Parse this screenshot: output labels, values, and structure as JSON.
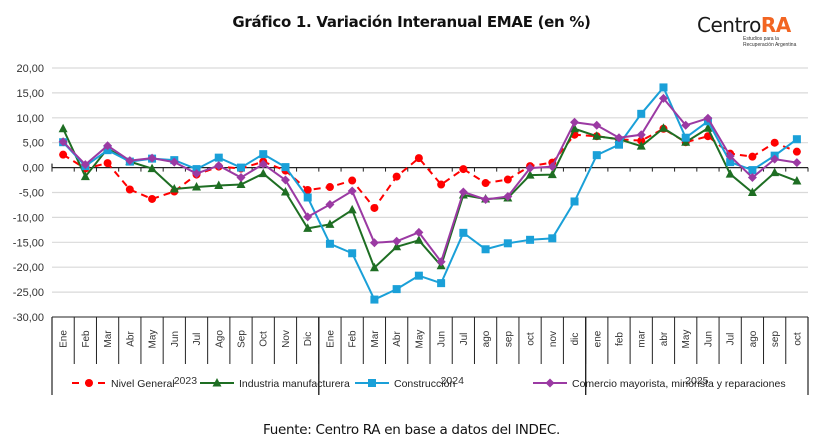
{
  "header": {
    "title": "Gráfico 1. Variación Interanual EMAE (en %)",
    "logo_main": "Centro",
    "logo_accent": "RA",
    "logo_sub_1": "Estudios para la",
    "logo_sub_2": "Recuperación Argentina"
  },
  "footer": {
    "source": "Fuente: Centro RA en base a datos del INDEC."
  },
  "chart_data": {
    "type": "line",
    "title": "Gráfico 1. Variación Interanual EMAE (en %)",
    "xlabel": "",
    "ylabel": "",
    "ylim": [
      -30,
      20
    ],
    "yticks": [
      20,
      15,
      10,
      5,
      0,
      -5,
      -10,
      -15,
      -20,
      -25,
      -30
    ],
    "ytick_labels": [
      "20,00",
      "15,00",
      "10,00",
      "5,00",
      "0,00",
      "-5,00",
      "-10,00",
      "-15,00",
      "-20,00",
      "-25,00",
      "-30,00"
    ],
    "grid": true,
    "legend_position": "bottom",
    "categories": [
      "Ene",
      "Feb",
      "Mar",
      "Abr",
      "May",
      "Jun",
      "Jul",
      "Ago",
      "Sep",
      "Oct",
      "Nov",
      "Dic",
      "Ene",
      "Feb",
      "Mar",
      "Abr",
      "May",
      "Jun",
      "Jul",
      "ago",
      "sep",
      "oct",
      "nov",
      "dic",
      "ene",
      "feb",
      "mar",
      "abr",
      "May",
      "Jun",
      "Jul",
      "ago",
      "sep",
      "oct"
    ],
    "year_groups": [
      {
        "label": "2023",
        "count": 12
      },
      {
        "label": "2024",
        "count": 12
      },
      {
        "label": "2025",
        "count": 10
      }
    ],
    "series": [
      {
        "name": "Nivel General",
        "color": "#ff0000",
        "marker": "circle",
        "dashed": true,
        "values": [
          2.6,
          -0.2,
          0.9,
          -4.4,
          -6.3,
          -4.8,
          -1.4,
          0.2,
          -0.2,
          1.2,
          -0.6,
          -4.5,
          -3.9,
          -2.6,
          -8.1,
          -1.8,
          1.9,
          -3.4,
          -0.3,
          -3.1,
          -2.4,
          0.3,
          1.0,
          6.6,
          6.3,
          5.7,
          5.4,
          7.8,
          5.1,
          6.3,
          2.8,
          2.2,
          5.0,
          3.2
        ]
      },
      {
        "name": "Industria manufacturera",
        "color": "#1e6e23",
        "marker": "triangle",
        "dashed": false,
        "values": [
          7.8,
          -1.8,
          3.8,
          1.2,
          -0.2,
          -4.3,
          -3.9,
          -3.6,
          -3.4,
          -1.2,
          -4.9,
          -12.2,
          -11.4,
          -8.5,
          -20.1,
          -15.9,
          -14.6,
          -19.7,
          -5.5,
          -6.3,
          -6.1,
          -1.5,
          -1.4,
          7.8,
          6.3,
          5.7,
          4.3,
          7.9,
          5.1,
          7.9,
          -1.3,
          -5.0,
          -1.0,
          -2.7
        ]
      },
      {
        "name": "Construcción",
        "color": "#1aa0d8",
        "marker": "square",
        "dashed": false,
        "values": [
          5.1,
          0.3,
          3.5,
          1.2,
          1.8,
          1.5,
          -0.3,
          2.0,
          0.0,
          2.7,
          0.1,
          -6.0,
          -15.3,
          -17.2,
          -26.5,
          -24.4,
          -21.7,
          -23.2,
          -13.1,
          -16.4,
          -15.2,
          -14.5,
          -14.2,
          -6.8,
          2.5,
          4.6,
          10.8,
          16.1,
          6.0,
          9.3,
          1.1,
          -0.5,
          2.4,
          5.7
        ]
      },
      {
        "name": "Comercio mayorista, minorista y reparaciones",
        "color": "#9b3aa3",
        "marker": "diamond",
        "dashed": false,
        "values": [
          5.2,
          0.6,
          4.4,
          1.4,
          1.9,
          1.1,
          -1.2,
          0.4,
          -2.0,
          0.7,
          -2.5,
          -9.9,
          -7.4,
          -4.7,
          -15.1,
          -14.8,
          -13.0,
          -18.9,
          -4.9,
          -6.4,
          -5.8,
          -0.1,
          0.2,
          9.1,
          8.5,
          6.0,
          6.6,
          13.9,
          8.5,
          9.9,
          2.3,
          -2.0,
          1.7,
          1.0
        ]
      }
    ]
  }
}
